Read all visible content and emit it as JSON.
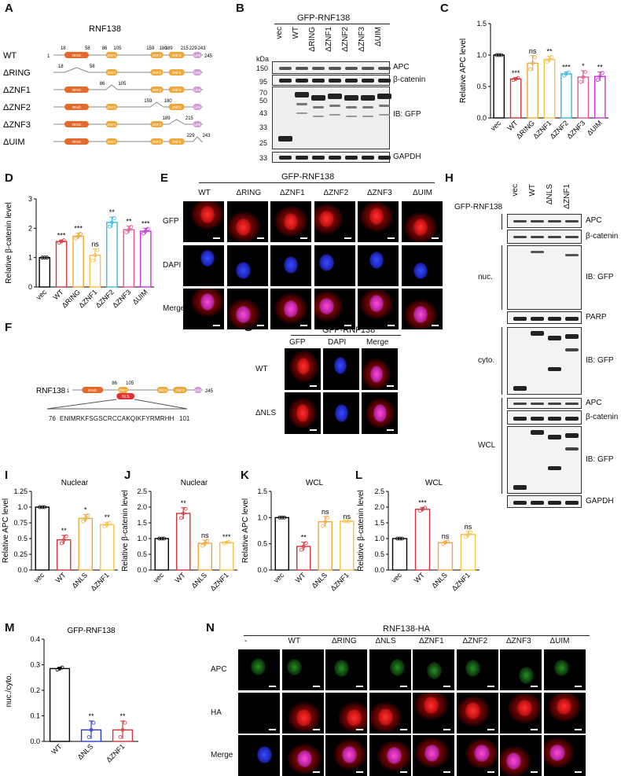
{
  "panel_labels": [
    "A",
    "B",
    "C",
    "D",
    "E",
    "F",
    "G",
    "H",
    "I",
    "J",
    "K",
    "L",
    "M",
    "N"
  ],
  "panelA": {
    "title": "RNF138",
    "constructs": [
      {
        "name": "WT",
        "start": "1",
        "end": "245"
      },
      {
        "name": "ΔRING",
        "start": "18",
        "end": "58"
      },
      {
        "name": "ΔZNF1",
        "start": "86",
        "end": "105"
      },
      {
        "name": "ΔZNF2",
        "start": "159",
        "end": "180"
      },
      {
        "name": "ΔZNF3",
        "start": "189",
        "end": "215"
      },
      {
        "name": "ΔUIM",
        "start": "229",
        "end": "243"
      }
    ],
    "wt_positions": [
      "18",
      "58",
      "86",
      "105",
      "159",
      "180",
      "189",
      "215",
      "229",
      "243"
    ],
    "domains": {
      "ring": "RING",
      "znf1": "ZNF1",
      "znf2": "ZNF2",
      "znf3": "ZNF3",
      "uim": "UIM"
    }
  },
  "panelB": {
    "header": "GFP-RNF138",
    "lanes": [
      "vec",
      "WT",
      "ΔRING",
      "ΔZNF1",
      "ΔZNF2",
      "ΔZNF3",
      "ΔUIM"
    ],
    "kda": "kDa",
    "markers_top": [
      "150",
      "95"
    ],
    "markers_gfp": [
      "70",
      "50",
      "43",
      "33",
      "25"
    ],
    "marker_gapdh": "33",
    "labels": {
      "apc": "APC",
      "bcat": "β-catenin",
      "ibgfp": "IB: GFP",
      "gapdh": "GAPDH"
    }
  },
  "panelC": {
    "ylabel": "Relative APC level",
    "categories": [
      "vec",
      "WT",
      "ΔRING",
      "ΔZNF1",
      "ΔZNF2",
      "ΔZNF3",
      "ΔUIM"
    ],
    "values": [
      1.0,
      0.62,
      0.87,
      0.93,
      0.7,
      0.65,
      0.66
    ],
    "errors": [
      0.0,
      0.02,
      0.12,
      0.05,
      0.03,
      0.1,
      0.07
    ],
    "sig": [
      "",
      "***",
      "ns",
      "**",
      "***",
      "*",
      "**"
    ],
    "ylim": [
      0,
      1.5
    ],
    "ticks": [
      "0.0",
      "0.5",
      "1.0",
      "1.5"
    ],
    "colors": [
      "#000000",
      "#d4343b",
      "#f0a73c",
      "#f4c14a",
      "#3bb8e6",
      "#e5588f",
      "#c832d6"
    ]
  },
  "panelD": {
    "ylabel": "Relative β-catenin level",
    "categories": [
      "vec",
      "WT",
      "ΔRING",
      "ΔZNF1",
      "ΔZNF2",
      "ΔZNF3",
      "ΔUIM"
    ],
    "values": [
      1.0,
      1.55,
      1.73,
      1.08,
      2.2,
      1.95,
      1.9
    ],
    "errors": [
      0.0,
      0.05,
      0.1,
      0.22,
      0.18,
      0.12,
      0.1
    ],
    "sig": [
      "",
      "***",
      "***",
      "ns",
      "**",
      "**",
      "***"
    ],
    "ylim": [
      0,
      3
    ],
    "ticks": [
      "0",
      "1",
      "2",
      "3"
    ],
    "colors": [
      "#000000",
      "#d4343b",
      "#f0a73c",
      "#f4c14a",
      "#3bb8e6",
      "#e5588f",
      "#c832d6"
    ]
  },
  "panelE": {
    "header": "GFP-RNF138",
    "columns": [
      "WT",
      "ΔRING",
      "ΔZNF1",
      "ΔZNF2",
      "ΔZNF3",
      "ΔUIM"
    ],
    "rows": [
      "GFP",
      "DAPI",
      "Merge"
    ]
  },
  "panelF": {
    "name": "RNF138",
    "start": "1",
    "end": "245",
    "pos1": "86",
    "pos2": "105",
    "nls": "NLS",
    "seq_start": "76",
    "sequence": "ENIMRKFSGSCRCCAKQIKFYRMRHH",
    "seq_end": "101",
    "domains": {
      "ring": "RING",
      "znf1": "ZNF1",
      "znf2": "ZNF2",
      "znf3": "ZNF3",
      "uim": "UIM"
    }
  },
  "panelG": {
    "header": "GFP-RNF138",
    "columns": [
      "GFP",
      "DAPI",
      "Merge"
    ],
    "rows": [
      "WT",
      "ΔNLS"
    ]
  },
  "panelH": {
    "header": "GFP-RNF138",
    "lanes": [
      "vec",
      "WT",
      "ΔNLS",
      "ΔZNF1"
    ],
    "fractions": [
      "nuc.",
      "cyto.",
      "WCL"
    ],
    "labels": {
      "apc": "APC",
      "bcat": "β-catenin",
      "ibgfp": "IB: GFP",
      "parp": "PARP",
      "gapdh": "GAPDH"
    }
  },
  "panelI": {
    "title": "Nuclear",
    "ylabel": "Relative APC level",
    "categories": [
      "vec",
      "WT",
      "ΔNLS",
      "ΔZNF1"
    ],
    "values": [
      1.0,
      0.48,
      0.82,
      0.72
    ],
    "errors": [
      0.0,
      0.07,
      0.06,
      0.04
    ],
    "sig": [
      "",
      "**",
      "*",
      "**"
    ],
    "ylim": [
      0,
      1.25
    ],
    "ticks": [
      "0.0",
      "0.25",
      "0.5",
      "0.75",
      "1.0",
      "1.25"
    ],
    "tickvals": [
      0,
      0.25,
      0.5,
      0.75,
      1.0,
      1.25
    ],
    "colors": [
      "#000000",
      "#d4343b",
      "#f0a73c",
      "#f4c14a"
    ]
  },
  "panelJ": {
    "title": "Nuclear",
    "ylabel": "Relative β-catenin level",
    "categories": [
      "vec",
      "WT",
      "ΔNLS",
      "ΔZNF1"
    ],
    "values": [
      1.0,
      1.8,
      0.85,
      0.87
    ],
    "errors": [
      0.0,
      0.18,
      0.1,
      0.03
    ],
    "sig": [
      "",
      "**",
      "ns",
      "***"
    ],
    "ylim": [
      0,
      2.5
    ],
    "ticks": [
      "0.0",
      "0.5",
      "1.0",
      "1.5",
      "2.0",
      "2.5"
    ],
    "tickvals": [
      0,
      0.5,
      1.0,
      1.5,
      2.0,
      2.5
    ],
    "colors": [
      "#000000",
      "#d4343b",
      "#f0a73c",
      "#f4c14a"
    ]
  },
  "panelK": {
    "title": "WCL",
    "ylabel": "Relative APC level",
    "categories": [
      "vec",
      "WT",
      "ΔNLS",
      "ΔZNF1"
    ],
    "values": [
      1.0,
      0.45,
      0.92,
      0.93
    ],
    "errors": [
      0.0,
      0.08,
      0.1,
      0.0
    ],
    "sig": [
      "",
      "**",
      "ns",
      "ns"
    ],
    "ylim": [
      0,
      1.5
    ],
    "ticks": [
      "0.0",
      "0.5",
      "1.0",
      "1.5"
    ],
    "tickvals": [
      0,
      0.5,
      1.0,
      1.5
    ],
    "colors": [
      "#000000",
      "#d4343b",
      "#f0a73c",
      "#f4c14a"
    ]
  },
  "panelL": {
    "title": "WCL",
    "ylabel": "Relative β-catenin level",
    "categories": [
      "vec",
      "WT",
      "ΔNLS",
      "ΔZNF1"
    ],
    "values": [
      1.0,
      1.93,
      0.87,
      1.13
    ],
    "errors": [
      0.0,
      0.06,
      0.05,
      0.1
    ],
    "sig": [
      "",
      "***",
      "ns",
      "ns"
    ],
    "ylim": [
      0,
      2.5
    ],
    "ticks": [
      "0.0",
      "0.5",
      "1.0",
      "1.5",
      "2.0",
      "2.5"
    ],
    "tickvals": [
      0,
      0.5,
      1.0,
      1.5,
      2.0,
      2.5
    ],
    "colors": [
      "#000000",
      "#d4343b",
      "#f0a73c",
      "#f4c14a"
    ]
  },
  "panelM": {
    "title": "GFP-RNF138",
    "ylabel": "nuc./cyto.",
    "categories": [
      "WT",
      "ΔNLS",
      "ΔZNF1"
    ],
    "values": [
      0.285,
      0.045,
      0.045
    ],
    "errors": [
      0.005,
      0.035,
      0.035
    ],
    "sig": [
      "",
      "**",
      "**"
    ],
    "ylim": [
      0,
      0.4
    ],
    "ticks": [
      "0.0",
      "0.1",
      "0.2",
      "0.3",
      "0.4"
    ],
    "tickvals": [
      0,
      0.1,
      0.2,
      0.3,
      0.4
    ],
    "colors": [
      "#000000",
      "#2a3ad1",
      "#d4343b"
    ]
  },
  "panelN": {
    "header": "RNF138-HA",
    "columns": [
      "-",
      "WT",
      "ΔRING",
      "ΔNLS",
      "ΔZNF1",
      "ΔZNF2",
      "ΔZNF3",
      "ΔUIM"
    ],
    "rows": [
      "APC",
      "HA",
      "Merge"
    ]
  }
}
